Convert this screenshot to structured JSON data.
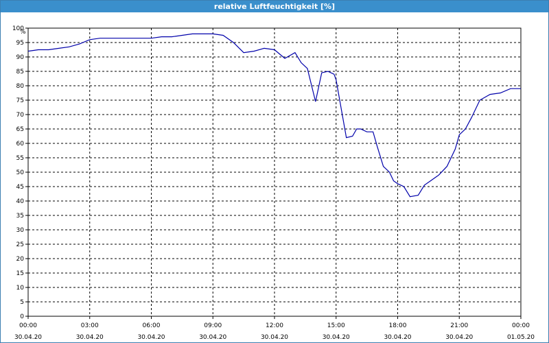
{
  "window": {
    "title": "relative Luftfeuchtigkeit [%]"
  },
  "chart_data": {
    "type": "line",
    "ylabel": "%",
    "ylim": [
      0,
      100
    ],
    "yticks": [
      0,
      5,
      10,
      15,
      20,
      25,
      30,
      35,
      40,
      45,
      50,
      55,
      60,
      65,
      70,
      75,
      80,
      85,
      90,
      95,
      100
    ],
    "xlim": [
      0,
      24
    ],
    "xticks": [
      {
        "time": "00:00",
        "date": "30.04.20"
      },
      {
        "time": "03:00",
        "date": "30.04.20"
      },
      {
        "time": "06:00",
        "date": "30.04.20"
      },
      {
        "time": "09:00",
        "date": "30.04.20"
      },
      {
        "time": "12:00",
        "date": "30.04.20"
      },
      {
        "time": "15:00",
        "date": "30.04.20"
      },
      {
        "time": "18:00",
        "date": "30.04.20"
      },
      {
        "time": "21:00",
        "date": "30.04.20"
      },
      {
        "time": "00:00",
        "date": "01.05.20"
      }
    ],
    "grid": true,
    "line_color": "#0000aa",
    "series": [
      {
        "x": [
          0,
          0.5,
          1,
          1.5,
          2,
          2.5,
          3,
          3.5,
          4,
          4.5,
          5,
          5.5,
          6,
          6.5,
          7,
          7.5,
          8,
          8.5,
          9,
          9.5,
          10,
          10.5,
          11,
          11.5,
          12,
          12.5,
          13,
          13.3,
          13.6,
          14,
          14.3,
          14.6,
          14.9,
          15,
          15.5,
          15.8,
          16,
          16.2,
          16.5,
          16.8,
          17,
          17.3,
          17.6,
          17.8,
          18,
          18.3,
          18.6,
          19,
          19.3,
          19.6,
          20,
          20.4,
          20.8,
          21,
          21.3,
          21.6,
          22,
          22.5,
          23,
          23.5,
          24
        ],
        "y": [
          92,
          92.5,
          92.5,
          93,
          93.5,
          94.5,
          96,
          96.5,
          96.5,
          96.5,
          96.5,
          96.5,
          96.5,
          97,
          97,
          97.5,
          98,
          98,
          98,
          97.5,
          95,
          91.5,
          92,
          93,
          92.5,
          89.5,
          91.5,
          88,
          86,
          74.5,
          84.5,
          85,
          84,
          82,
          62,
          62.5,
          65,
          65,
          64,
          64,
          59,
          52,
          50,
          47,
          46,
          45,
          41.5,
          42,
          45.5,
          47,
          49,
          52,
          58,
          63,
          65,
          69,
          75,
          77,
          77.5,
          79,
          79
        ]
      }
    ]
  }
}
